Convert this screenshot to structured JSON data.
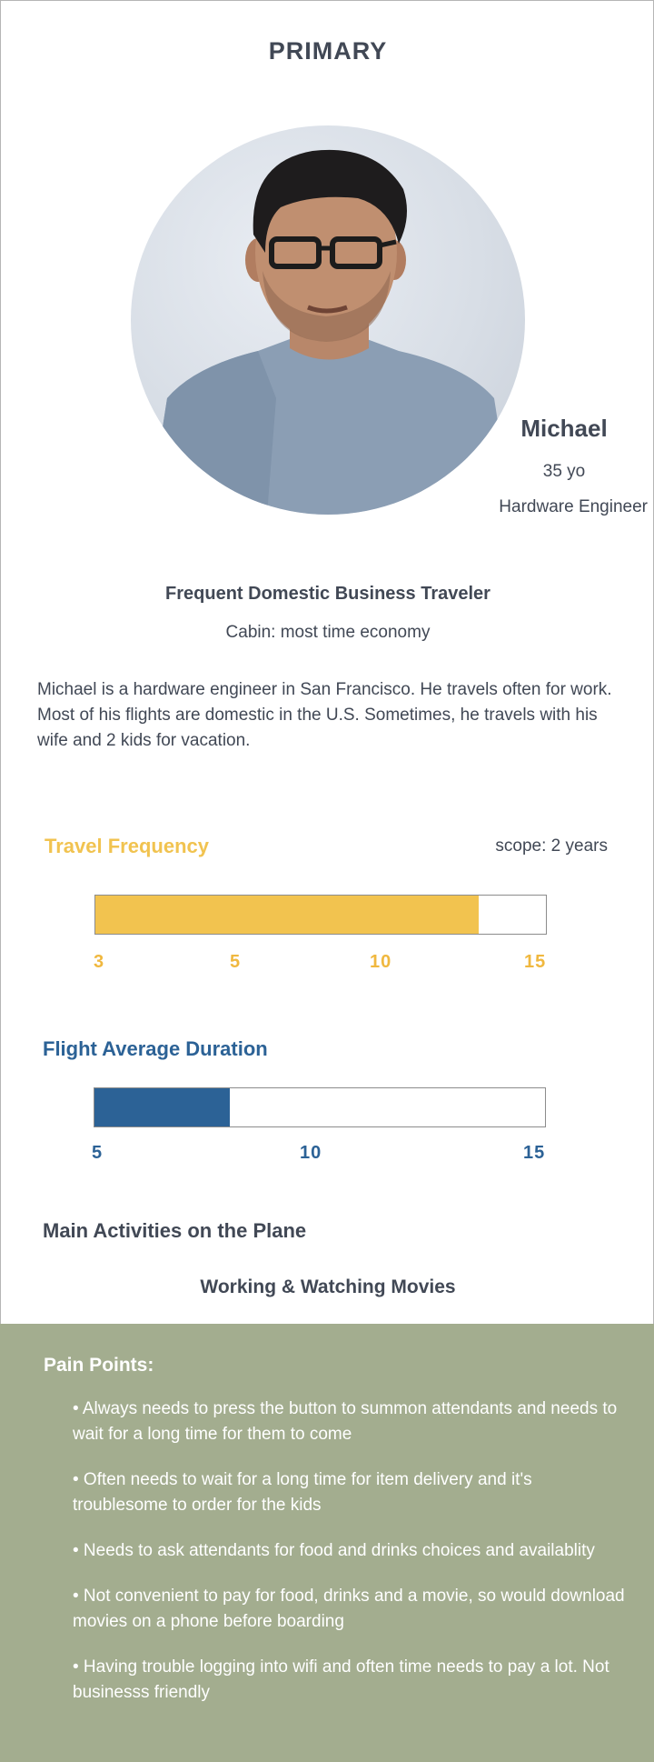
{
  "header": {
    "label": "PRIMARY"
  },
  "profile": {
    "name": "Michael",
    "age": "35 yo",
    "job": "Hardware Engineer",
    "avatar_icon": "person-portrait-icon"
  },
  "traveler": {
    "type": "Frequent Domestic Business Traveler",
    "cabin": "Cabin: most time economy"
  },
  "bio": "Michael is a hardware engineer in San Francisco. He travels often for work. Most of his flights are domestic in the U.S. Sometimes, he travels with his wife and 2 kids for vacation.",
  "travel_frequency": {
    "title": "Travel Frequency",
    "scope": "scope: 2 years",
    "ticks": [
      "3",
      "5",
      "10",
      "15"
    ],
    "value_fraction": 0.85,
    "color": "#f2c34f"
  },
  "flight_duration": {
    "title": "Flight Average Duration",
    "ticks": [
      "5",
      "10",
      "15"
    ],
    "value_fraction": 0.3,
    "color": "#2c6296"
  },
  "activities": {
    "title": "Main Activities on the Plane",
    "value": "Working & Watching Movies"
  },
  "pain_points": {
    "title": "Pain Points:",
    "background": "#a3ad8f",
    "items": [
      "• Always needs to press the button to summon attendants and needs to wait for a long time for them to come",
      "• Often needs to wait for a long time for item delivery and it's troublesome to order for the kids",
      "• Needs to ask attendants for food and drinks choices and availablity",
      "• Not convenient to pay for food, drinks and a movie, so would download movies on a phone before boarding",
      "• Having trouble logging into wifi and often time needs to pay a lot. Not businesss friendly"
    ]
  }
}
